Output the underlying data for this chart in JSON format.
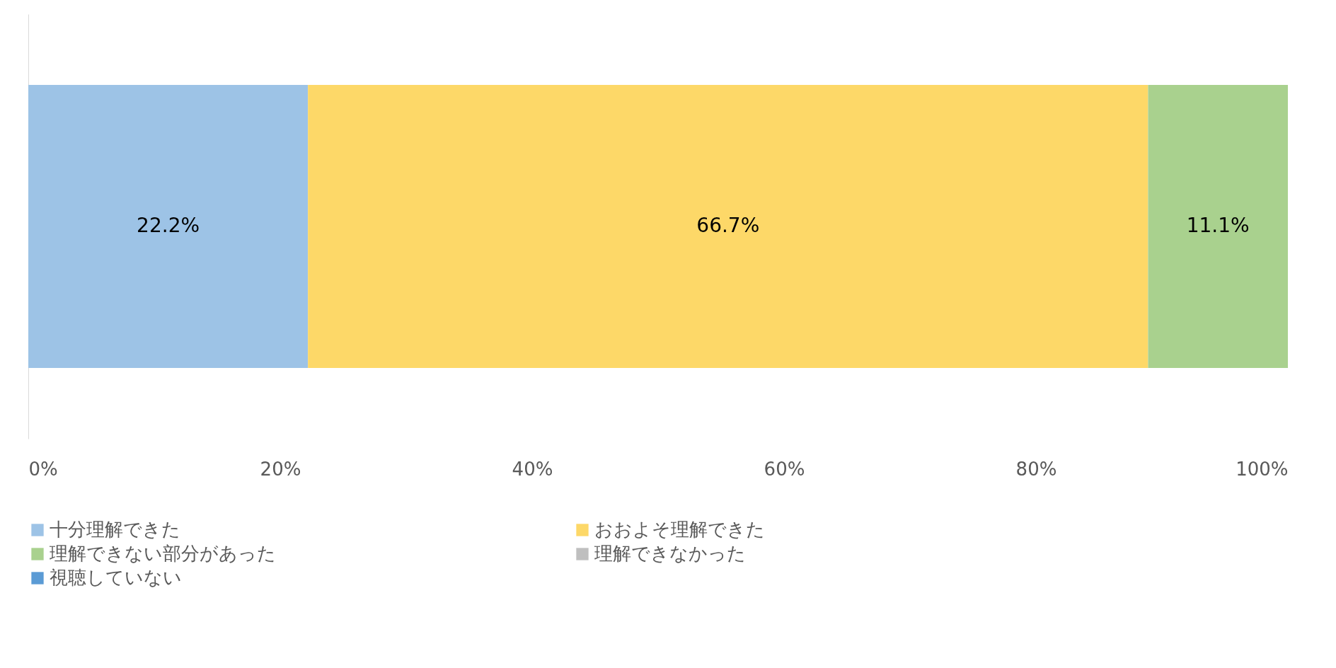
{
  "chart_data": {
    "type": "bar",
    "orientation": "horizontal",
    "stacked": true,
    "categories": [
      null
    ],
    "series": [
      {
        "name": "十分理解できた",
        "color": "#9dc3e6",
        "values": [
          22.2
        ],
        "value_labels": [
          "22.2%"
        ]
      },
      {
        "name": "おおよそ理解できた",
        "color": "#fdd868",
        "values": [
          66.7
        ],
        "value_labels": [
          "66.7%"
        ]
      },
      {
        "name": "理解できない部分があった",
        "color": "#a9d18e",
        "values": [
          11.1
        ],
        "value_labels": [
          "11.1%"
        ]
      },
      {
        "name": "理解できなかった",
        "color": "#bfbfbf",
        "values": [
          0
        ],
        "value_labels": [
          null
        ]
      },
      {
        "name": "視聴していない",
        "color": "#5b9bd5",
        "values": [
          0
        ],
        "value_labels": [
          null
        ]
      }
    ],
    "xlim": [
      0,
      100
    ],
    "xticks": [
      {
        "value": 0,
        "label": "0%"
      },
      {
        "value": 20,
        "label": "20%"
      },
      {
        "value": 40,
        "label": "40%"
      },
      {
        "value": 60,
        "label": "60%"
      },
      {
        "value": 80,
        "label": "80%"
      },
      {
        "value": 100,
        "label": "100%"
      }
    ],
    "grid": false,
    "legend": "bottom",
    "tick_labels": "x"
  }
}
